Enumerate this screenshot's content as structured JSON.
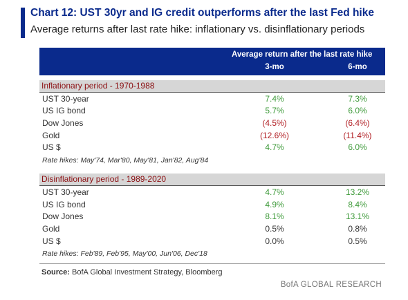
{
  "title": "Chart 12: UST 30yr and IG credit outperforms after the last Fed hike",
  "subtitle": "Average returns after last rate hike: inflationary vs. disinflationary periods",
  "colors": {
    "navy": "#0a2a8c",
    "positive": "#3e9a3a",
    "negative": "#b11e23",
    "section_bg": "#d6d6d6",
    "section_text": "#8b0f12"
  },
  "chart_data": {
    "type": "table",
    "column_group": "Average return after the last rate hike",
    "columns": [
      "3-mo",
      "6-mo"
    ],
    "sections": [
      {
        "title": "Inflationary period - 1970-1988",
        "rows": [
          {
            "label": "UST 30-year",
            "v3": "7.4%",
            "v6": "7.3%",
            "t3": "pos",
            "t6": "pos"
          },
          {
            "label": "US IG bond",
            "v3": "5.7%",
            "v6": "6.0%",
            "t3": "pos",
            "t6": "pos"
          },
          {
            "label": "Dow Jones",
            "v3": "(4.5%)",
            "v6": "(6.4%)",
            "t3": "neg",
            "t6": "neg"
          },
          {
            "label": "Gold",
            "v3": "(12.6%)",
            "v6": "(11.4%)",
            "t3": "neg",
            "t6": "neg"
          },
          {
            "label": "US $",
            "v3": "4.7%",
            "v6": "6.0%",
            "t3": "pos",
            "t6": "pos"
          }
        ],
        "note": "Rate hikes: May'74, Mar'80, May'81, Jan'82, Aug'84"
      },
      {
        "title": "Disinflationary period - 1989-2020",
        "rows": [
          {
            "label": "UST 30-year",
            "v3": "4.7%",
            "v6": "13.2%",
            "t3": "pos",
            "t6": "pos"
          },
          {
            "label": "US IG bond",
            "v3": "4.9%",
            "v6": "8.4%",
            "t3": "pos",
            "t6": "pos"
          },
          {
            "label": "Dow Jones",
            "v3": "8.1%",
            "v6": "13.1%",
            "t3": "pos",
            "t6": "pos"
          },
          {
            "label": "Gold",
            "v3": "0.5%",
            "v6": "0.8%",
            "t3": "neu",
            "t6": "neu"
          },
          {
            "label": "US $",
            "v3": "0.0%",
            "v6": "0.5%",
            "t3": "neu",
            "t6": "neu"
          }
        ],
        "note": "Rate hikes: Feb'89, Feb'95, May'00, Jun'06, Dec'18"
      }
    ]
  },
  "source": {
    "label": "Source:",
    "text": "BofA Global Investment Strategy, Bloomberg"
  },
  "brand": "BofA GLOBAL RESEARCH"
}
